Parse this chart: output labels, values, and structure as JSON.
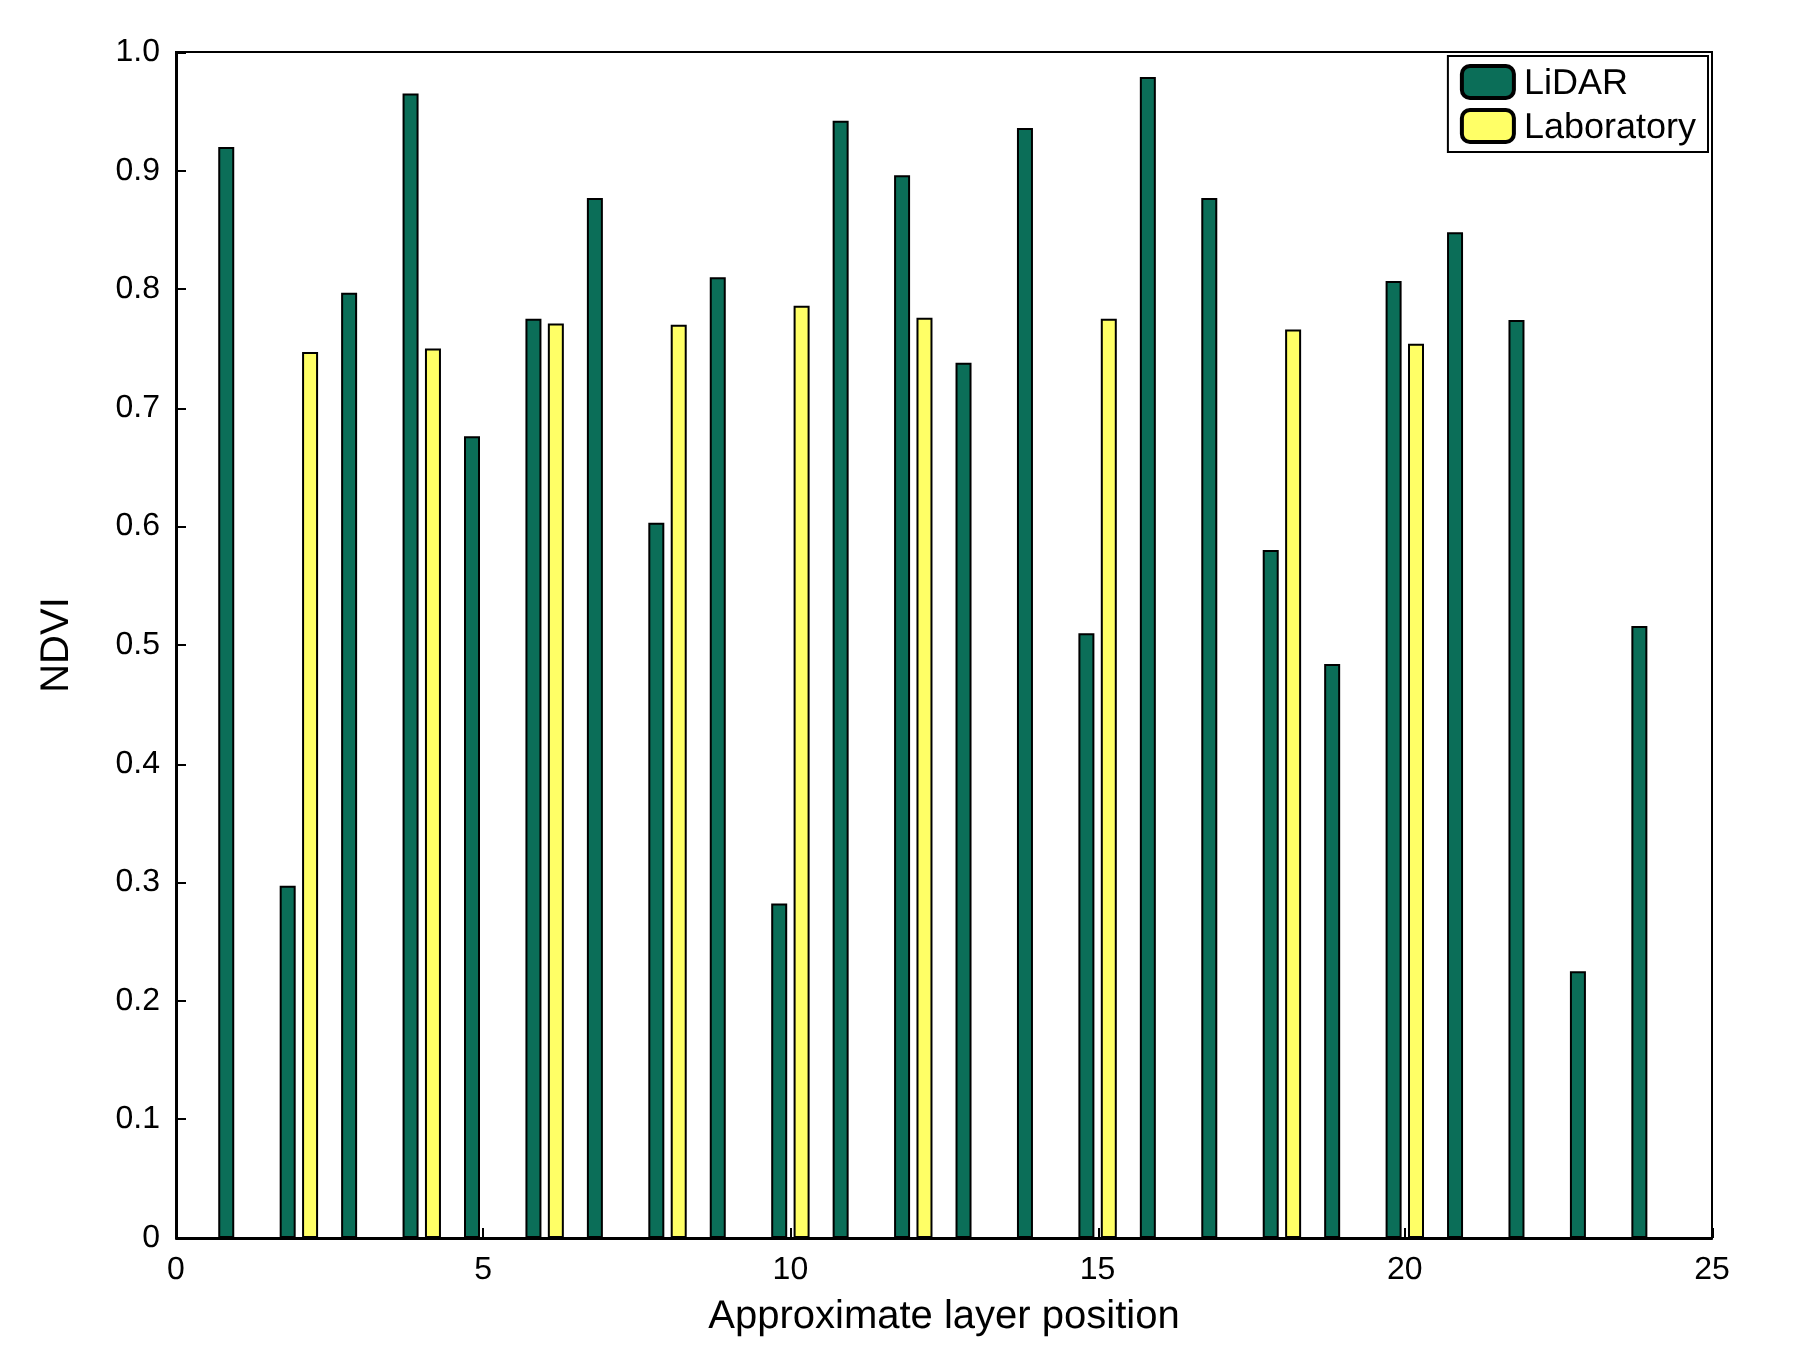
{
  "chart_data": {
    "type": "bar",
    "xlabel": "Approximate layer position",
    "ylabel": "NDVI",
    "x": [
      1,
      2,
      3,
      4,
      5,
      6,
      7,
      8,
      9,
      10,
      11,
      12,
      13,
      14,
      15,
      16,
      17,
      18,
      19,
      20,
      21,
      22,
      23,
      24
    ],
    "series": [
      {
        "name": "LiDAR",
        "color": "#0b6e58",
        "values": [
          0.92,
          0.297,
          0.797,
          0.965,
          0.676,
          0.775,
          0.877,
          0.603,
          0.81,
          0.282,
          0.942,
          0.896,
          0.738,
          0.936,
          0.51,
          0.979,
          0.877,
          0.58,
          0.484,
          0.807,
          0.848,
          0.774,
          0.225,
          0.516
        ]
      },
      {
        "name": "Laboratory",
        "color": "#ffff66",
        "values": [
          null,
          0.747,
          null,
          0.75,
          null,
          0.771,
          null,
          0.77,
          null,
          0.786,
          null,
          0.776,
          null,
          null,
          0.775,
          null,
          null,
          0.766,
          null,
          0.754,
          null,
          null,
          null,
          null
        ]
      }
    ],
    "xlim": [
      0,
      25
    ],
    "xticks": [
      0,
      5,
      10,
      15,
      20,
      25
    ],
    "ylim": [
      0,
      1
    ],
    "yticks": [
      0,
      0.1,
      0.2,
      0.3,
      0.4,
      0.5,
      0.6,
      0.7,
      0.8,
      0.9,
      {
        "value": 1,
        "label": "1.0"
      }
    ],
    "grid": false,
    "legend": "top right"
  }
}
